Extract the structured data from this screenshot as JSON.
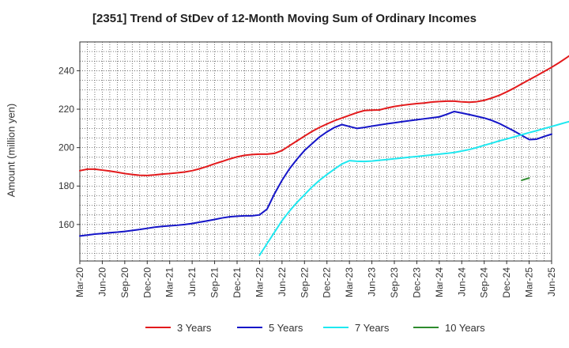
{
  "chart_data": {
    "type": "line",
    "title": "[2351]  Trend of StDev of 12-Month Moving Sum of Ordinary Incomes",
    "xlabel": "",
    "ylabel": "Amount (million yen)",
    "x_tick_labels": [
      "Mar-20",
      "Jun-20",
      "Sep-20",
      "Dec-20",
      "Mar-21",
      "Jun-21",
      "Sep-21",
      "Dec-21",
      "Mar-22",
      "Jun-22",
      "Sep-22",
      "Dec-22",
      "Mar-23",
      "Jun-23",
      "Sep-23",
      "Dec-23",
      "Mar-24",
      "Jun-24",
      "Sep-24",
      "Dec-24",
      "Mar-25",
      "Jun-25"
    ],
    "y_ticks": [
      160,
      180,
      200,
      220,
      240
    ],
    "ylim": [
      141,
      255
    ],
    "grid": true,
    "legend_position": "bottom",
    "series": [
      {
        "name": "3 Years",
        "color": "#e31a1c",
        "start_month": "Mar-20",
        "values": [
          188,
          188.8,
          188.8,
          188.3,
          187.8,
          187.2,
          186.5,
          186,
          185.6,
          185.5,
          185.8,
          186.2,
          186.5,
          186.9,
          187.3,
          188,
          189,
          190.2,
          191.6,
          192.8,
          194.1,
          195.2,
          196,
          196.4,
          196.6,
          196.6,
          197,
          198.5,
          201,
          203.5,
          206,
          208.4,
          210.5,
          212.3,
          214,
          215.4,
          216.8,
          218.2,
          219.3,
          219.5,
          219.6,
          220.6,
          221.4,
          222,
          222.5,
          222.9,
          223.2,
          223.7,
          224,
          224.2,
          224.2,
          223.8,
          223.6,
          223.9,
          224.6,
          225.8,
          227.2,
          229,
          231,
          233.2,
          235.3,
          237.4,
          239.6,
          241.8,
          244.2,
          246.8,
          249.5,
          251.5,
          251.3,
          244
        ]
      },
      {
        "name": "5 Years",
        "color": "#1515c8",
        "start_month": "Mar-20",
        "values": [
          154,
          154.5,
          155,
          155.3,
          155.7,
          156,
          156.4,
          156.9,
          157.4,
          158,
          158.6,
          159,
          159.3,
          159.6,
          160,
          160.5,
          161.2,
          161.9,
          162.6,
          163.4,
          164,
          164.3,
          164.5,
          164.5,
          165,
          168,
          176,
          183,
          189,
          194,
          198.5,
          202,
          205.5,
          208.2,
          210.5,
          212,
          211,
          210,
          210.5,
          211.2,
          211.8,
          212.4,
          212.9,
          213.5,
          214,
          214.5,
          215,
          215.5,
          216,
          217.3,
          218.8,
          218,
          217.2,
          216.3,
          215.4,
          214.2,
          212.6,
          210.6,
          208.6,
          206.4,
          204.2,
          204.4,
          205.8,
          207
        ]
      },
      {
        "name": "7 Years",
        "color": "#1ee8f0",
        "start_month": "Mar-22",
        "values": [
          144,
          150,
          156,
          162,
          167,
          171.5,
          175.5,
          179.5,
          183,
          186,
          188.8,
          191.5,
          193.2,
          192.9,
          192.8,
          193,
          193.4,
          193.8,
          194.2,
          194.6,
          195,
          195.4,
          195.8,
          196.2,
          196.6,
          197,
          197.5,
          198.2,
          199,
          200,
          201.2,
          202.3,
          203.5,
          204.5,
          205.6,
          206.7,
          207.8,
          208.8,
          209.9,
          211,
          212.1,
          213.2,
          214.2
        ]
      },
      {
        "name": "10 Years",
        "color": "#2e8b2e",
        "start_month": "Feb-25",
        "values": [
          183,
          184.2
        ]
      }
    ]
  }
}
